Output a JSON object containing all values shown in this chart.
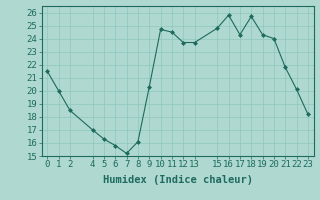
{
  "x": [
    0,
    1,
    2,
    4,
    5,
    6,
    7,
    8,
    9,
    10,
    11,
    12,
    13,
    15,
    16,
    17,
    18,
    19,
    20,
    21,
    22,
    23
  ],
  "y": [
    21.5,
    20.0,
    18.5,
    17.0,
    16.3,
    15.8,
    15.2,
    16.1,
    20.3,
    24.7,
    24.5,
    23.7,
    23.7,
    24.8,
    25.8,
    24.3,
    25.7,
    24.3,
    24.0,
    21.8,
    20.1,
    18.2
  ],
  "line_color": "#1e6b5e",
  "marker": "D",
  "marker_size": 2,
  "bg_color": "#aed8d0",
  "grid_color": "#8ec8be",
  "xlabel": "Humidex (Indice chaleur)",
  "ylabel_ticks": [
    15,
    16,
    17,
    18,
    19,
    20,
    21,
    22,
    23,
    24,
    25,
    26
  ],
  "xticks": [
    0,
    1,
    2,
    4,
    5,
    6,
    7,
    8,
    9,
    10,
    11,
    12,
    13,
    15,
    16,
    17,
    18,
    19,
    20,
    21,
    22,
    23
  ],
  "xlim": [
    -0.5,
    23.5
  ],
  "ylim": [
    15,
    26.5
  ],
  "tick_color": "#1e6b5e",
  "tick_fontsize": 6.5,
  "label_fontsize": 7.5
}
